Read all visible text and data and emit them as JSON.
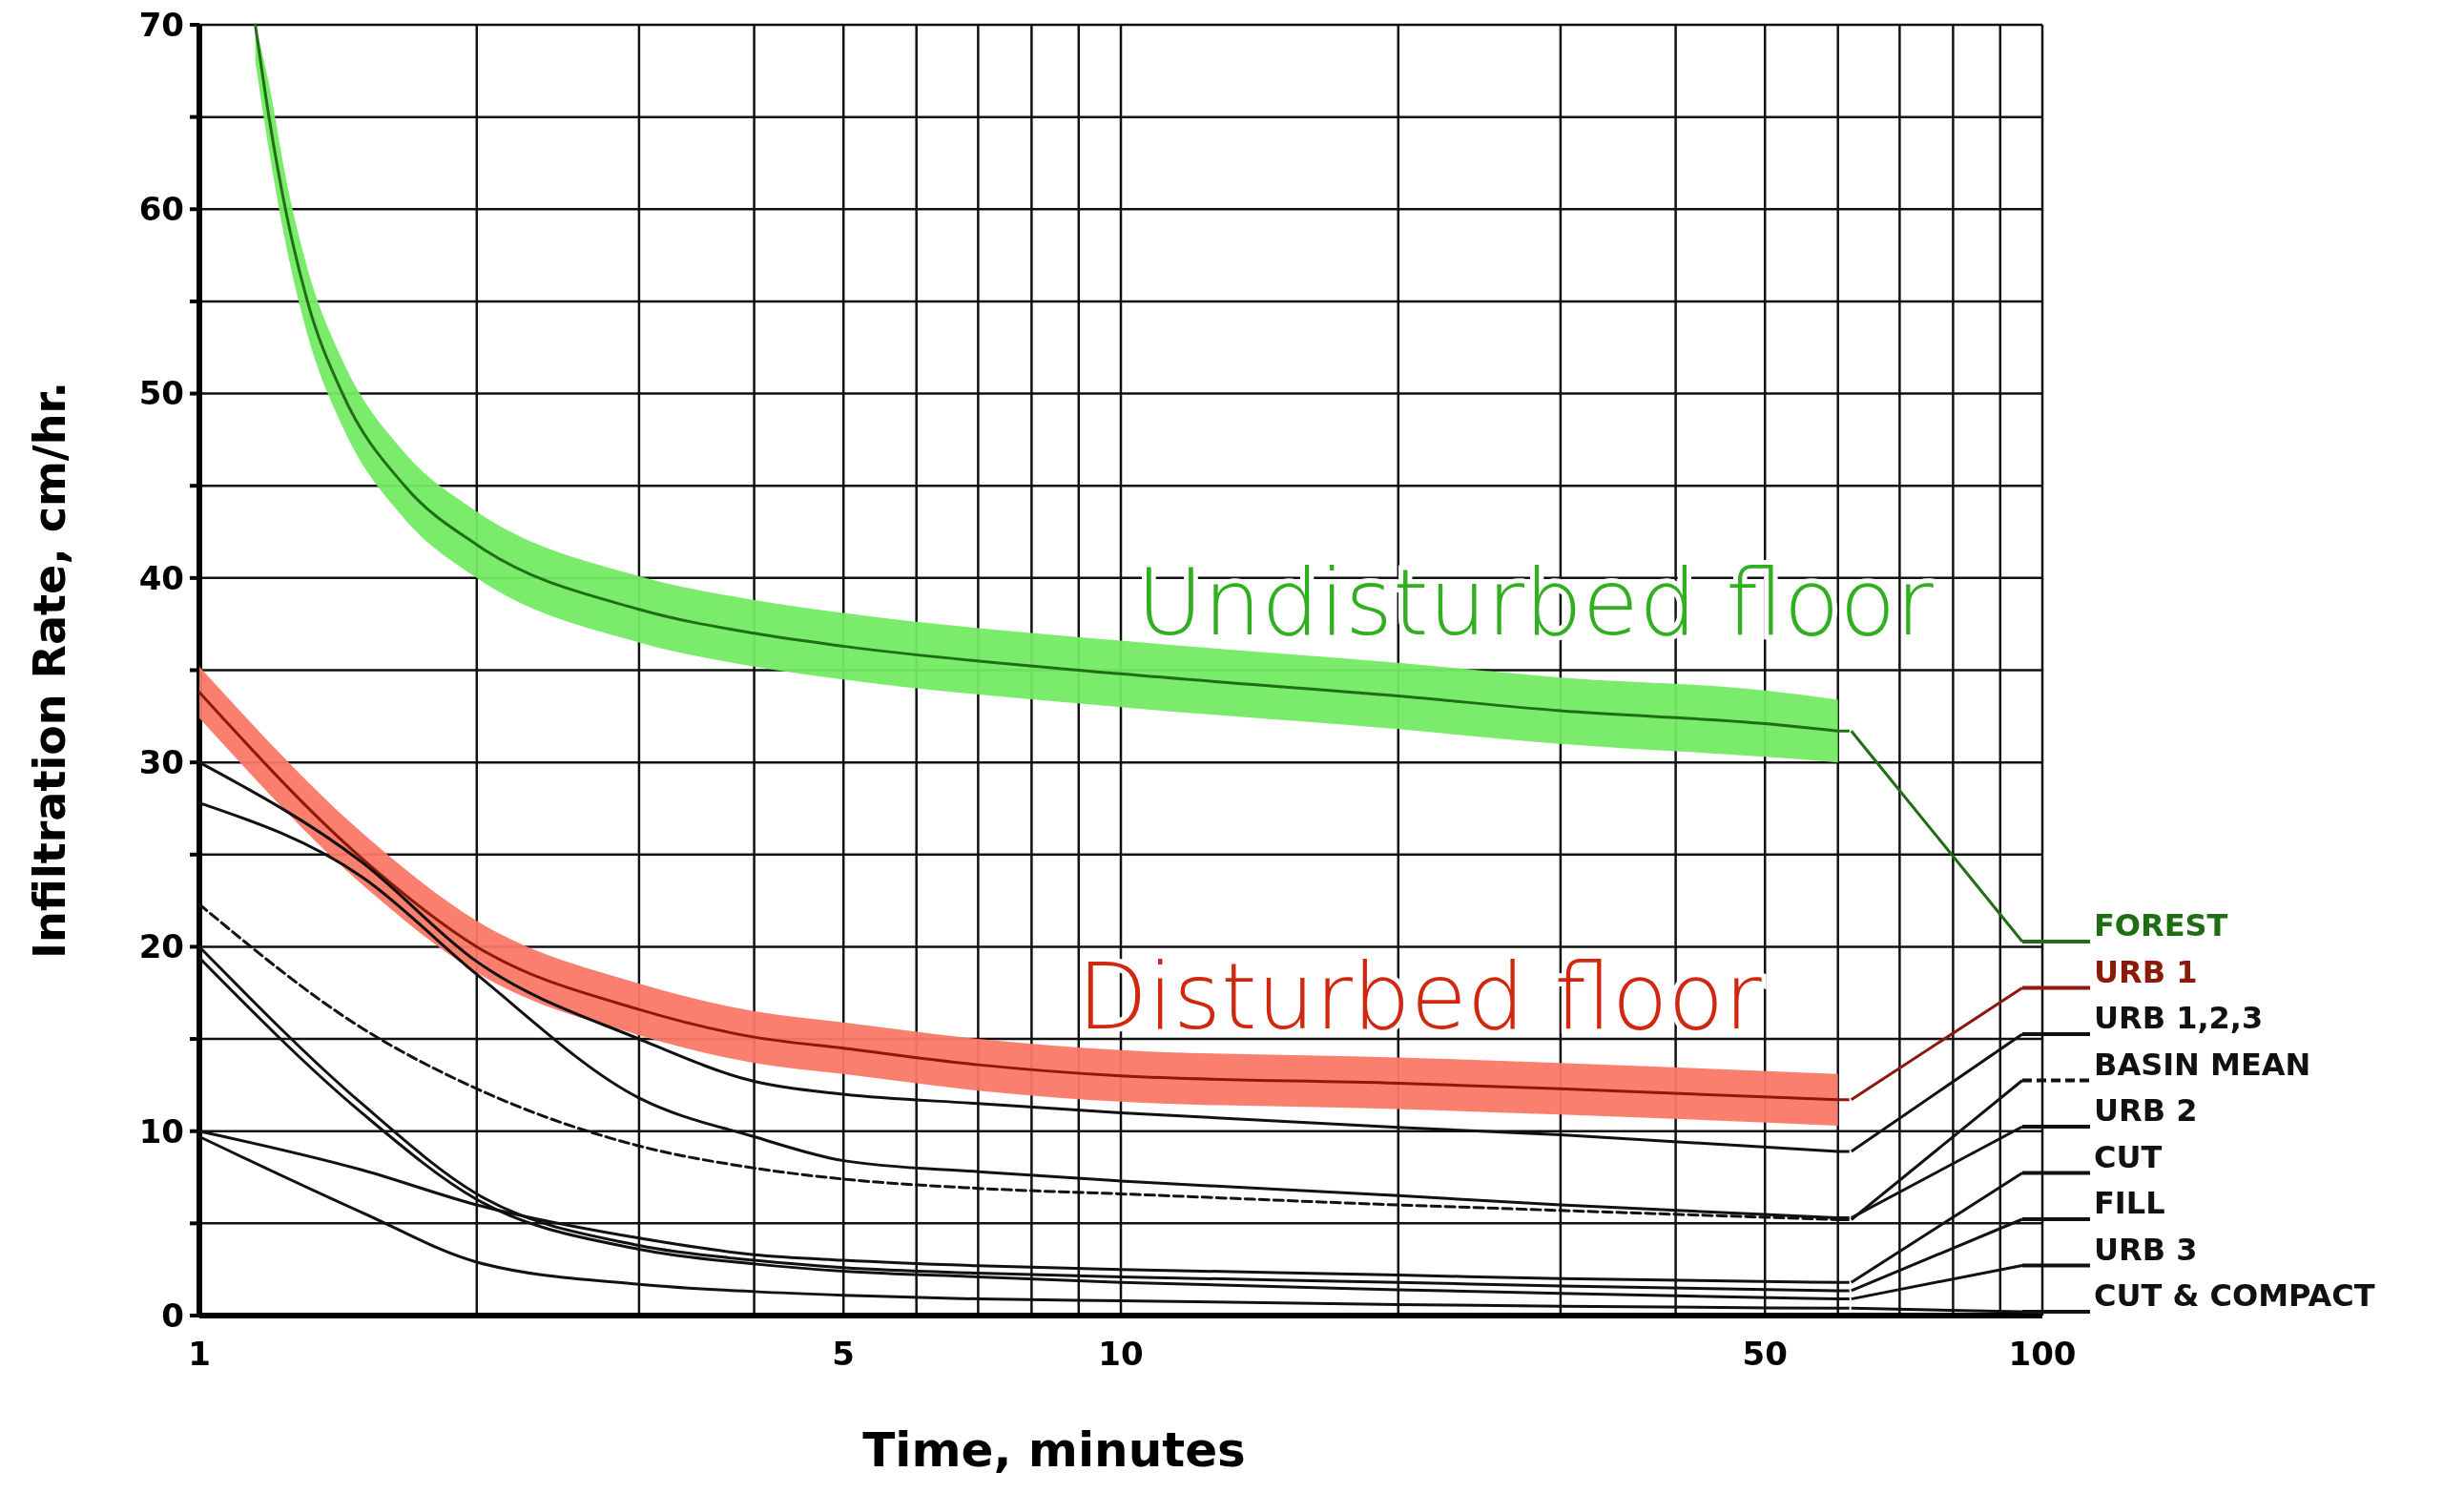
{
  "chart_data": {
    "type": "line",
    "xlabel": "Time, minutes",
    "ylabel": "Infiltration Rate, cm/hr.",
    "log": "x",
    "grid": true,
    "legend": "right",
    "x": [
      1,
      1.5,
      2,
      3,
      4,
      5,
      7,
      10,
      20,
      30,
      60
    ],
    "xlim": [
      1,
      100
    ],
    "xticks": [
      1,
      {
        "value": 2,
        "label": null
      },
      {
        "value": 3,
        "label": null
      },
      {
        "value": 4,
        "label": null
      },
      5,
      {
        "value": 6,
        "label": null
      },
      {
        "value": 7,
        "label": null
      },
      {
        "value": 8,
        "label": null
      },
      {
        "value": 9,
        "label": null
      },
      10,
      {
        "value": 20,
        "label": null
      },
      {
        "value": 30,
        "label": null
      },
      {
        "value": 40,
        "label": null
      },
      50,
      {
        "value": 60,
        "label": null
      },
      {
        "value": 70,
        "label": null
      },
      {
        "value": 80,
        "label": null
      },
      {
        "value": 90,
        "label": null
      },
      100
    ],
    "ylim": [
      0,
      70
    ],
    "yticks": [
      0,
      {
        "value": 5,
        "label": null
      },
      10,
      {
        "value": 15,
        "label": null
      },
      20,
      {
        "value": 25,
        "label": null
      },
      30,
      {
        "value": 35,
        "label": null
      },
      40,
      {
        "value": 45,
        "label": null
      },
      50,
      {
        "value": 55,
        "label": null
      },
      60,
      {
        "value": 65,
        "label": null
      },
      70
    ],
    "series": [
      {
        "name": "FOREST",
        "color": "#1f6e14",
        "x": [
          1.15,
          1.19,
          1.24,
          1.31,
          1.43,
          1.67,
          2,
          3,
          4,
          5,
          10,
          20,
          30,
          50,
          60
        ],
        "values": [
          70,
          65,
          60,
          55,
          50,
          45,
          41.8,
          38.3,
          37,
          36.3,
          34.8,
          33.6,
          32.8,
          32.1,
          31.7
        ],
        "lower": [
          68,
          63.2,
          58.2,
          53.2,
          48.2,
          43.2,
          40,
          36.5,
          35.2,
          34.5,
          33,
          31.8,
          31,
          30.3,
          30
        ],
        "upper": [
          70,
          66.8,
          61.8,
          56.8,
          51.8,
          46.8,
          43.6,
          40.1,
          38.8,
          38.1,
          36.6,
          35.4,
          34.6,
          33.9,
          33.4
        ]
      },
      {
        "name": "URB 1",
        "color": "#8b1a0a",
        "values": [
          33.8,
          24.8,
          20,
          16.6,
          15.1,
          14.5,
          13.6,
          13,
          12.6,
          12.3,
          11.7
        ],
        "lower": [
          32.4,
          23.4,
          18.6,
          15.2,
          13.7,
          13.1,
          12.2,
          11.6,
          11.2,
          10.9,
          10.3
        ],
        "upper": [
          35.2,
          26.2,
          21.4,
          18,
          16.5,
          15.9,
          15,
          14.4,
          14,
          13.7,
          13.1
        ]
      },
      {
        "name": "URB 1,2,3",
        "color": "#111111",
        "values": [
          30,
          24.6,
          19.2,
          15,
          12.7,
          12,
          11.5,
          11,
          10.2,
          9.8,
          8.9
        ]
      },
      {
        "name": "BASIN MEAN",
        "color": "#111111",
        "line_style": "dashed",
        "values": [
          22.3,
          15.6,
          12.3,
          9.2,
          8,
          7.4,
          6.9,
          6.6,
          6,
          5.7,
          5.2
        ]
      },
      {
        "name": "URB 2",
        "color": "#111111",
        "values": [
          27.8,
          23.8,
          18.5,
          11.8,
          9.7,
          8.4,
          7.8,
          7.3,
          6.5,
          6,
          5.3
        ]
      },
      {
        "name": "CUT",
        "color": "#111111",
        "values": [
          10,
          7.9,
          6,
          4.2,
          3.3,
          3,
          2.7,
          2.5,
          2.2,
          2,
          1.8
        ]
      },
      {
        "name": "FILL",
        "color": "#111111",
        "values": [
          20,
          11.5,
          6.6,
          3.8,
          3,
          2.6,
          2.3,
          2.1,
          1.8,
          1.6,
          1.35
        ]
      },
      {
        "name": "URB 3",
        "color": "#111111",
        "values": [
          19.4,
          11,
          6.3,
          3.6,
          2.8,
          2.4,
          2.1,
          1.8,
          1.4,
          1.2,
          0.9
        ]
      },
      {
        "name": "CUT & COMPACT",
        "color": "#111111",
        "values": [
          9.7,
          5.6,
          2.9,
          1.7,
          1.3,
          1.1,
          0.9,
          0.8,
          0.6,
          0.5,
          0.4
        ]
      }
    ],
    "annotations": [
      "Undisturbed floor",
      "Disturbed floor"
    ]
  }
}
